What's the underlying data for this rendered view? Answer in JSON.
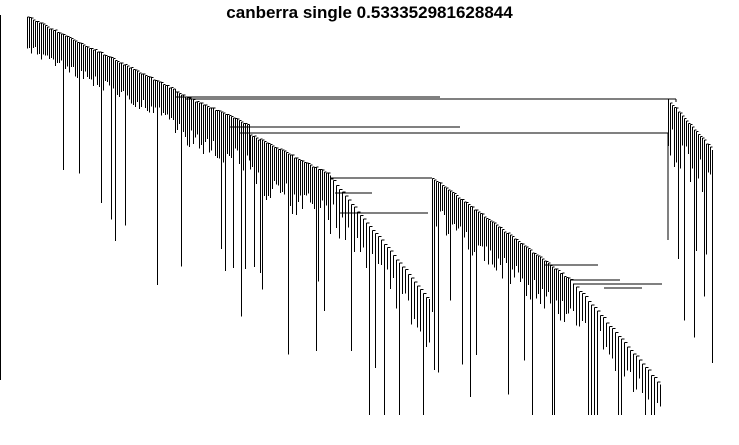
{
  "title": "canberra single 0.533352981628844",
  "chart_data": {
    "type": "dendrogram",
    "title": "canberra single 0.533352981628844",
    "xlabel": "",
    "ylabel": "",
    "axes": {
      "left_axis_line": true,
      "tick_labels": false
    },
    "grid": false,
    "legend": "none",
    "colors": {
      "line": "#000000",
      "background": "#ffffff"
    },
    "heights": {
      "root": 1.0,
      "note": "merge heights normalized to the root merge (1.0); leaves at 0.0",
      "backbone_top": 0.98,
      "backbone_bottom": 0.75,
      "major_merges": [
        0.68,
        0.64,
        0.6,
        0.57,
        0.45,
        0.36,
        0.3,
        0.25
      ],
      "leaf_drop_range": [
        0.0,
        0.3
      ]
    },
    "cluster_structure": [
      {
        "name": "",
        "leaves_approx": 110,
        "merge_height": 0.98
      },
      {
        "name": "",
        "leaves_approx": 60,
        "merge_height": 0.64
      },
      {
        "name": "",
        "leaves_approx": 55,
        "merge_height": 0.6
      },
      {
        "name": "",
        "leaves_approx": 45,
        "merge_height": 0.45
      },
      {
        "name": "",
        "leaves_approx": 20,
        "merge_height": 0.68
      }
    ]
  }
}
